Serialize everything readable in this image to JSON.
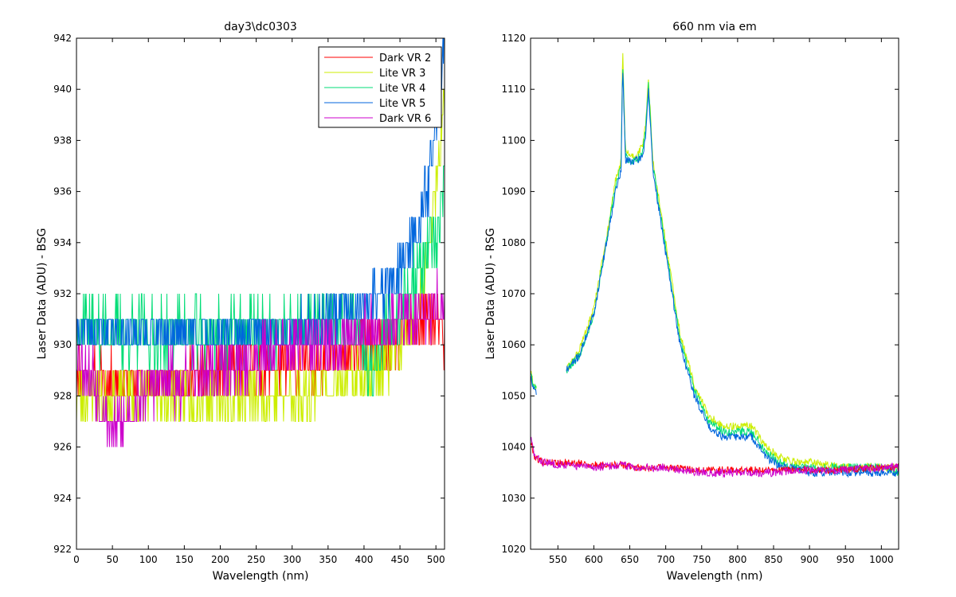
{
  "chart_data": [
    {
      "type": "line",
      "title": "day3\\dc0303",
      "xlabel": "Wavelength (nm)",
      "ylabel": "Laser Data (ADU) - BSG",
      "xlim": [
        0,
        512
      ],
      "ylim": [
        922,
        942
      ],
      "xticks": [
        0,
        50,
        100,
        150,
        200,
        250,
        300,
        350,
        400,
        450,
        500
      ],
      "yticks": [
        922,
        924,
        926,
        928,
        930,
        932,
        934,
        936,
        938,
        940,
        942
      ],
      "xtick_labels": [
        "0",
        "50",
        "100",
        "150",
        "200",
        "250",
        "300",
        "350",
        "400",
        "450",
        "500"
      ],
      "ytick_labels": [
        "922",
        "924",
        "926",
        "928",
        "930",
        "932",
        "934",
        "936",
        "938",
        "940",
        "942"
      ],
      "grid": false,
      "legend_position": "top-right",
      "series": [
        {
          "name": "Dark VR 2",
          "color": "#ff0000",
          "x": [
            0,
            50,
            100,
            150,
            200,
            250,
            300,
            350,
            380,
            400,
            420,
            440,
            460,
            480,
            500,
            512
          ],
          "values": [
            929,
            928.5,
            928.5,
            928.5,
            929,
            929,
            929,
            929.5,
            929.5,
            930,
            930,
            930,
            930.5,
            931,
            931,
            930
          ],
          "noise": 1.0,
          "seed": 11
        },
        {
          "name": "Lite VR 3",
          "color": "#ccee00",
          "x": [
            0,
            50,
            100,
            150,
            200,
            250,
            300,
            350,
            380,
            400,
            420,
            440,
            460,
            480,
            490,
            500,
            512
          ],
          "values": [
            928,
            928,
            928,
            928,
            928,
            928,
            928,
            928.5,
            928.5,
            929,
            929,
            929.5,
            930,
            932,
            934,
            936,
            940
          ],
          "noise": 1.0,
          "seed": 23
        },
        {
          "name": "Lite VR 4",
          "color": "#00dd77",
          "x": [
            0,
            50,
            100,
            150,
            200,
            250,
            300,
            350,
            380,
            400,
            410,
            420,
            440,
            460,
            480,
            500,
            512
          ],
          "values": [
            931,
            930.5,
            930.5,
            930.5,
            930.5,
            930.5,
            930.5,
            931,
            931,
            930,
            929,
            930,
            931,
            932,
            933,
            934,
            936
          ],
          "noise": 1.2,
          "seed": 37
        },
        {
          "name": "Lite VR 5",
          "color": "#0066dd",
          "x": [
            0,
            50,
            100,
            150,
            200,
            250,
            300,
            350,
            380,
            400,
            420,
            440,
            460,
            480,
            500,
            512
          ],
          "values": [
            930.5,
            930.5,
            930.5,
            930.5,
            930.5,
            930.5,
            930.5,
            931,
            931.5,
            931.5,
            932,
            932.5,
            933.5,
            935,
            938,
            942
          ],
          "noise": 1.0,
          "seed": 41
        },
        {
          "name": "Dark VR 6",
          "color": "#cc00cc",
          "x": [
            0,
            20,
            50,
            80,
            100,
            150,
            200,
            250,
            300,
            350,
            400,
            450,
            500,
            512
          ],
          "values": [
            929.5,
            929,
            926.5,
            927.5,
            928.5,
            928.5,
            929,
            929.5,
            930,
            930,
            930.5,
            931,
            931.5,
            931.5
          ],
          "noise": 1.1,
          "seed": 53
        }
      ]
    },
    {
      "type": "line",
      "title": "660 nm via em",
      "xlabel": "Wavelength (nm)",
      "ylabel": "Laser Data (ADU) - RSG",
      "xlim": [
        512,
        1024
      ],
      "ylim": [
        1020,
        1120
      ],
      "xticks": [
        550,
        600,
        650,
        700,
        750,
        800,
        850,
        900,
        950,
        1000
      ],
      "yticks": [
        1020,
        1030,
        1040,
        1050,
        1060,
        1070,
        1080,
        1090,
        1100,
        1110,
        1120
      ],
      "xtick_labels": [
        "550",
        "600",
        "650",
        "700",
        "750",
        "800",
        "850",
        "900",
        "950",
        "1000"
      ],
      "ytick_labels": [
        "1020",
        "1030",
        "1040",
        "1050",
        "1060",
        "1070",
        "1080",
        "1090",
        "1100",
        "1110",
        "1120"
      ],
      "grid": false,
      "series": [
        {
          "color": "#ccee00",
          "segments": [
            {
              "x": [
                512,
                516,
                520
              ],
              "values": [
                1055,
                1052,
                1052
              ]
            },
            {
              "x": [
                562,
                580,
                600,
                620,
                630,
                638,
                640,
                644,
                650,
                660,
                668,
                672,
                676,
                682,
                690,
                700,
                720,
                740,
                760,
                780,
                800,
                820,
                840,
                860,
                880,
                900,
                950,
                1000,
                1024
              ],
              "values": [
                1055,
                1059,
                1067,
                1083,
                1092,
                1096,
                1118,
                1098,
                1097,
                1097,
                1099,
                1103,
                1112,
                1096,
                1089,
                1080,
                1062,
                1052,
                1046,
                1044,
                1044,
                1044,
                1040,
                1038,
                1037,
                1037,
                1036,
                1036,
                1036
              ]
            }
          ],
          "noise": 0.8,
          "seed": 61
        },
        {
          "color": "#00dd77",
          "segments": [
            {
              "x": [
                512,
                516,
                520
              ],
              "values": [
                1055,
                1052,
                1052
              ]
            },
            {
              "x": [
                562,
                580,
                600,
                620,
                630,
                638,
                640,
                644,
                650,
                660,
                668,
                672,
                676,
                682,
                690,
                700,
                720,
                740,
                760,
                780,
                800,
                820,
                840,
                860,
                880,
                900,
                950,
                1000,
                1024
              ],
              "values": [
                1055,
                1058,
                1066,
                1082,
                1091,
                1095,
                1116,
                1097,
                1096,
                1096,
                1098,
                1102,
                1111,
                1095,
                1088,
                1079,
                1061,
                1051,
                1045,
                1043,
                1043,
                1043,
                1039,
                1037,
                1036,
                1036,
                1036,
                1036,
                1035
              ]
            }
          ],
          "noise": 0.8,
          "seed": 67
        },
        {
          "color": "#0066dd",
          "segments": [
            {
              "x": [
                512,
                516,
                520
              ],
              "values": [
                1054,
                1051,
                1051
              ]
            },
            {
              "x": [
                562,
                580,
                600,
                620,
                630,
                638,
                640,
                644,
                650,
                660,
                668,
                672,
                676,
                682,
                690,
                700,
                720,
                740,
                760,
                780,
                800,
                820,
                840,
                860,
                880,
                900,
                950,
                1000,
                1024
              ],
              "values": [
                1055,
                1058,
                1066,
                1082,
                1090,
                1094,
                1115,
                1096,
                1096,
                1096,
                1097,
                1101,
                1110,
                1094,
                1087,
                1078,
                1060,
                1050,
                1044,
                1042,
                1042,
                1042,
                1038,
                1036,
                1036,
                1035,
                1035,
                1035,
                1035
              ]
            }
          ],
          "noise": 0.8,
          "seed": 71
        },
        {
          "color": "#ff0000",
          "segments": [
            {
              "x": [
                512,
                518,
                530,
                560,
                600,
                640,
                660,
                700,
                750,
                800,
                850,
                900,
                950,
                1000,
                1024
              ],
              "values": [
                1041,
                1038,
                1037,
                1037,
                1036.5,
                1036.5,
                1036,
                1036,
                1035.5,
                1035.5,
                1035.5,
                1035.5,
                1035.5,
                1036,
                1036
              ]
            }
          ],
          "noise": 0.7,
          "seed": 79
        },
        {
          "color": "#cc00cc",
          "segments": [
            {
              "x": [
                512,
                518,
                530,
                560,
                600,
                640,
                660,
                700,
                750,
                800,
                850,
                900,
                950,
                1000,
                1024
              ],
              "values": [
                1042,
                1038,
                1037,
                1036.5,
                1036,
                1036.5,
                1036,
                1036,
                1035,
                1035,
                1035,
                1035.5,
                1035.5,
                1036,
                1036
              ]
            }
          ],
          "noise": 0.8,
          "seed": 83
        }
      ]
    }
  ]
}
